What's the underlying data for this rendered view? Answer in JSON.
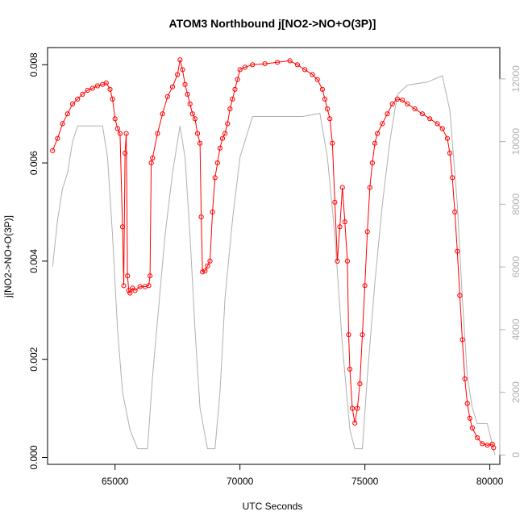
{
  "chart_data": {
    "type": "scatter",
    "title": "ATOM3 Northbound j[NO2->NO+O(3P)]",
    "xlabel": "UTC Seconds",
    "ylabel": "j[NO2->NO+O(3P)]",
    "xlim": [
      62300,
      80400
    ],
    "ylim": [
      -0.00014,
      0.00835
    ],
    "y2lim": [
      -300,
      13000
    ],
    "xticks": [
      "65000",
      "70000",
      "75000",
      "80000"
    ],
    "yticks": [
      "0.000",
      "0.002",
      "0.004",
      "0.006",
      "0.008"
    ],
    "y2ticks": [
      "0",
      "2000",
      "4000",
      "6000",
      "8000",
      "10000",
      "12000"
    ],
    "colors": {
      "series_j": "#ff0000",
      "series_alt": "#b0b0b0",
      "axis": "#000000"
    },
    "grid": false,
    "series": [
      {
        "axis": "left",
        "marker": "open-circle",
        "points": [
          [
            62500,
            0.00625
          ],
          [
            62700,
            0.0065
          ],
          [
            62900,
            0.0068
          ],
          [
            63100,
            0.007
          ],
          [
            63300,
            0.0072
          ],
          [
            63500,
            0.0073
          ],
          [
            63700,
            0.0074
          ],
          [
            63900,
            0.00748
          ],
          [
            64100,
            0.00752
          ],
          [
            64300,
            0.00757
          ],
          [
            64500,
            0.0076
          ],
          [
            64650,
            0.00763
          ],
          [
            64800,
            0.0075
          ],
          [
            64900,
            0.0073
          ],
          [
            65000,
            0.0069
          ],
          [
            65100,
            0.0067
          ],
          [
            65200,
            0.0066
          ],
          [
            65300,
            0.0047
          ],
          [
            65350,
            0.0035
          ],
          [
            65400,
            0.0062
          ],
          [
            65450,
            0.0066
          ],
          [
            65500,
            0.0037
          ],
          [
            65550,
            0.0034
          ],
          [
            65600,
            0.00335
          ],
          [
            65700,
            0.00345
          ],
          [
            65800,
            0.0034
          ],
          [
            66000,
            0.00348
          ],
          [
            66200,
            0.00348
          ],
          [
            66350,
            0.0035
          ],
          [
            66400,
            0.0037
          ],
          [
            66450,
            0.006
          ],
          [
            66500,
            0.0061
          ],
          [
            66700,
            0.0066
          ],
          [
            66900,
            0.007
          ],
          [
            67100,
            0.00735
          ],
          [
            67300,
            0.00755
          ],
          [
            67500,
            0.0078
          ],
          [
            67600,
            0.0081
          ],
          [
            67700,
            0.0079
          ],
          [
            67800,
            0.0076
          ],
          [
            67900,
            0.0074
          ],
          [
            68000,
            0.0072
          ],
          [
            68100,
            0.007
          ],
          [
            68200,
            0.0069
          ],
          [
            68300,
            0.0066
          ],
          [
            68400,
            0.0064
          ],
          [
            68450,
            0.0049
          ],
          [
            68500,
            0.00378
          ],
          [
            68600,
            0.0038
          ],
          [
            68700,
            0.0039
          ],
          [
            68800,
            0.004
          ],
          [
            68900,
            0.005
          ],
          [
            69000,
            0.0057
          ],
          [
            69100,
            0.006
          ],
          [
            69200,
            0.0063
          ],
          [
            69300,
            0.0065
          ],
          [
            69400,
            0.0066
          ],
          [
            69500,
            0.0068
          ],
          [
            69600,
            0.0071
          ],
          [
            69700,
            0.0073
          ],
          [
            69800,
            0.0075
          ],
          [
            69900,
            0.0077
          ],
          [
            70000,
            0.0079
          ],
          [
            70200,
            0.00795
          ],
          [
            70500,
            0.008
          ],
          [
            71000,
            0.00802
          ],
          [
            71500,
            0.00805
          ],
          [
            72000,
            0.00808
          ],
          [
            72300,
            0.008
          ],
          [
            72600,
            0.0079
          ],
          [
            72900,
            0.0078
          ],
          [
            73100,
            0.0077
          ],
          [
            73300,
            0.0075
          ],
          [
            73400,
            0.0073
          ],
          [
            73500,
            0.0071
          ],
          [
            73600,
            0.0069
          ],
          [
            73700,
            0.0064
          ],
          [
            73800,
            0.0052
          ],
          [
            73900,
            0.004
          ],
          [
            74000,
            0.0047
          ],
          [
            74100,
            0.0055
          ],
          [
            74200,
            0.0048
          ],
          [
            74300,
            0.004
          ],
          [
            74350,
            0.0025
          ],
          [
            74400,
            0.0018
          ],
          [
            74500,
            0.001
          ],
          [
            74600,
            0.0007
          ],
          [
            74700,
            0.001
          ],
          [
            74800,
            0.0015
          ],
          [
            74900,
            0.0025
          ],
          [
            75000,
            0.0035
          ],
          [
            75100,
            0.0046
          ],
          [
            75200,
            0.0055
          ],
          [
            75300,
            0.006
          ],
          [
            75400,
            0.0064
          ],
          [
            75500,
            0.0066
          ],
          [
            75700,
            0.0068
          ],
          [
            75900,
            0.007
          ],
          [
            76100,
            0.0072
          ],
          [
            76300,
            0.0073
          ],
          [
            76500,
            0.00728
          ],
          [
            76700,
            0.0072
          ],
          [
            77000,
            0.0071
          ],
          [
            77300,
            0.007
          ],
          [
            77600,
            0.0069
          ],
          [
            77900,
            0.0068
          ],
          [
            78100,
            0.0067
          ],
          [
            78300,
            0.0065
          ],
          [
            78400,
            0.0062
          ],
          [
            78500,
            0.0057
          ],
          [
            78600,
            0.005
          ],
          [
            78700,
            0.0042
          ],
          [
            78800,
            0.0033
          ],
          [
            78900,
            0.0024
          ],
          [
            79000,
            0.0016
          ],
          [
            79100,
            0.0011
          ],
          [
            79200,
            0.0008
          ],
          [
            79300,
            0.0006
          ],
          [
            79500,
            0.0004
          ],
          [
            79700,
            0.00028
          ],
          [
            79900,
            0.00025
          ],
          [
            80100,
            0.00027
          ],
          [
            80150,
            0.0002
          ]
        ]
      },
      {
        "axis": "right",
        "style": "line",
        "points": [
          [
            62500,
            6000
          ],
          [
            62700,
            7500
          ],
          [
            62900,
            8500
          ],
          [
            63100,
            9000
          ],
          [
            63300,
            10000
          ],
          [
            63500,
            10500
          ],
          [
            64500,
            10500
          ],
          [
            64700,
            9500
          ],
          [
            64900,
            7000
          ],
          [
            65100,
            4000
          ],
          [
            65300,
            2000
          ],
          [
            65600,
            800
          ],
          [
            65900,
            200
          ],
          [
            66300,
            200
          ],
          [
            66500,
            2500
          ],
          [
            67000,
            7000
          ],
          [
            67300,
            9000
          ],
          [
            67600,
            10500
          ],
          [
            67800,
            9500
          ],
          [
            68000,
            7000
          ],
          [
            68200,
            4000
          ],
          [
            68400,
            1500
          ],
          [
            68700,
            200
          ],
          [
            69000,
            200
          ],
          [
            69200,
            2000
          ],
          [
            69400,
            5000
          ],
          [
            69700,
            7500
          ],
          [
            70000,
            9500
          ],
          [
            70500,
            10800
          ],
          [
            71500,
            10800
          ],
          [
            72500,
            10800
          ],
          [
            73200,
            10900
          ],
          [
            73500,
            9500
          ],
          [
            73800,
            7000
          ],
          [
            74100,
            3500
          ],
          [
            74400,
            800
          ],
          [
            74600,
            200
          ],
          [
            74900,
            200
          ],
          [
            75100,
            2500
          ],
          [
            75400,
            5500
          ],
          [
            75700,
            8000
          ],
          [
            76000,
            10000
          ],
          [
            76300,
            11500
          ],
          [
            76700,
            11800
          ],
          [
            77500,
            11900
          ],
          [
            78100,
            12100
          ],
          [
            78400,
            11000
          ],
          [
            78700,
            8000
          ],
          [
            78900,
            5000
          ],
          [
            79100,
            2500
          ],
          [
            79300,
            1500
          ],
          [
            79500,
            1000
          ],
          [
            79900,
            1000
          ],
          [
            80200,
            0
          ]
        ]
      }
    ]
  }
}
